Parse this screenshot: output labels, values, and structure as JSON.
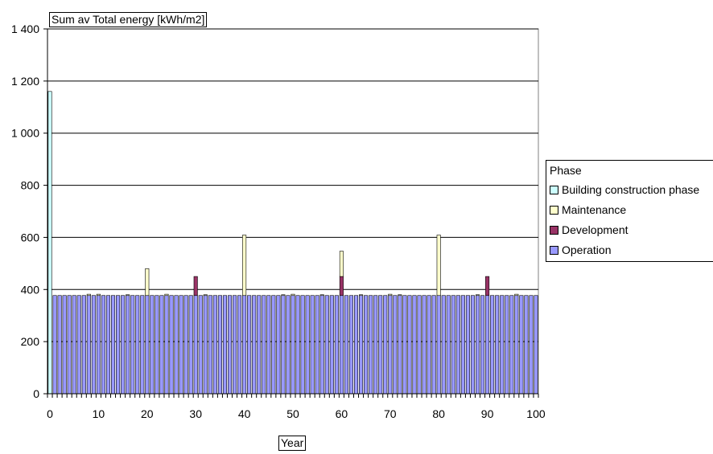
{
  "chart_data": {
    "type": "bar",
    "stacked": true,
    "title": "Sum av Total energy [kWh/m2]",
    "xlabel": "Year",
    "ylabel": "",
    "xlim": [
      0,
      100
    ],
    "ylim": [
      0,
      1400
    ],
    "yticks": [
      "0",
      "200",
      "400",
      "600",
      "800",
      "1 000",
      "1 200",
      "1 400"
    ],
    "xticks": [
      "0",
      "10",
      "20",
      "30",
      "40",
      "50",
      "60",
      "70",
      "80",
      "90",
      "100"
    ],
    "grid": true,
    "legend_title": "Phase",
    "legend_position": "right",
    "operation_per_year": 377,
    "series": [
      {
        "name": "Building construction phase",
        "color": "#ccffff",
        "points": [
          {
            "x": 0,
            "y": 1160
          }
        ]
      },
      {
        "name": "Maintenance",
        "color": "#ffffcc",
        "points": [
          {
            "x": 8,
            "y": 5
          },
          {
            "x": 10,
            "y": 5
          },
          {
            "x": 16,
            "y": 3
          },
          {
            "x": 20,
            "y": 103
          },
          {
            "x": 24,
            "y": 5
          },
          {
            "x": 32,
            "y": 3
          },
          {
            "x": 40,
            "y": 232
          },
          {
            "x": 48,
            "y": 3
          },
          {
            "x": 50,
            "y": 5
          },
          {
            "x": 56,
            "y": 3
          },
          {
            "x": 60,
            "y": 97
          },
          {
            "x": 64,
            "y": 3
          },
          {
            "x": 70,
            "y": 5
          },
          {
            "x": 72,
            "y": 3
          },
          {
            "x": 80,
            "y": 232
          },
          {
            "x": 88,
            "y": 3
          },
          {
            "x": 96,
            "y": 5
          }
        ]
      },
      {
        "name": "Development",
        "color": "#993366",
        "points": [
          {
            "x": 30,
            "y": 73
          },
          {
            "x": 60,
            "y": 73
          },
          {
            "x": 90,
            "y": 73
          }
        ]
      },
      {
        "name": "Operation",
        "color": "#9999ff",
        "points": "Years 1 to 100, 377 each"
      }
    ]
  }
}
